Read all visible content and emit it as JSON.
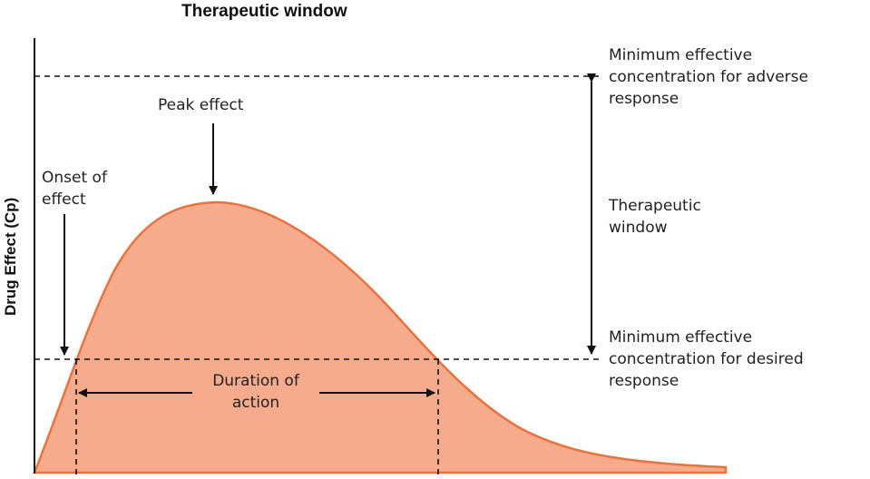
{
  "title": "Therapeutic window",
  "y_axis_label": "Drug Effect (Cp)",
  "labels": {
    "adverse": [
      "Minimum effective",
      "concentration for adverse",
      "response"
    ],
    "window": [
      "Therapeutic",
      "window"
    ],
    "desired": [
      "Minimum effective",
      "concentration for desired",
      "response"
    ],
    "peak": [
      "Peak effect"
    ],
    "onset": [
      "Onset of",
      "effect"
    ],
    "duration": [
      "Duration of",
      "action"
    ]
  },
  "colors": {
    "curve_fill": "#f5ab8c",
    "curve_stroke": "#e8733f",
    "lines": "#111111"
  }
}
